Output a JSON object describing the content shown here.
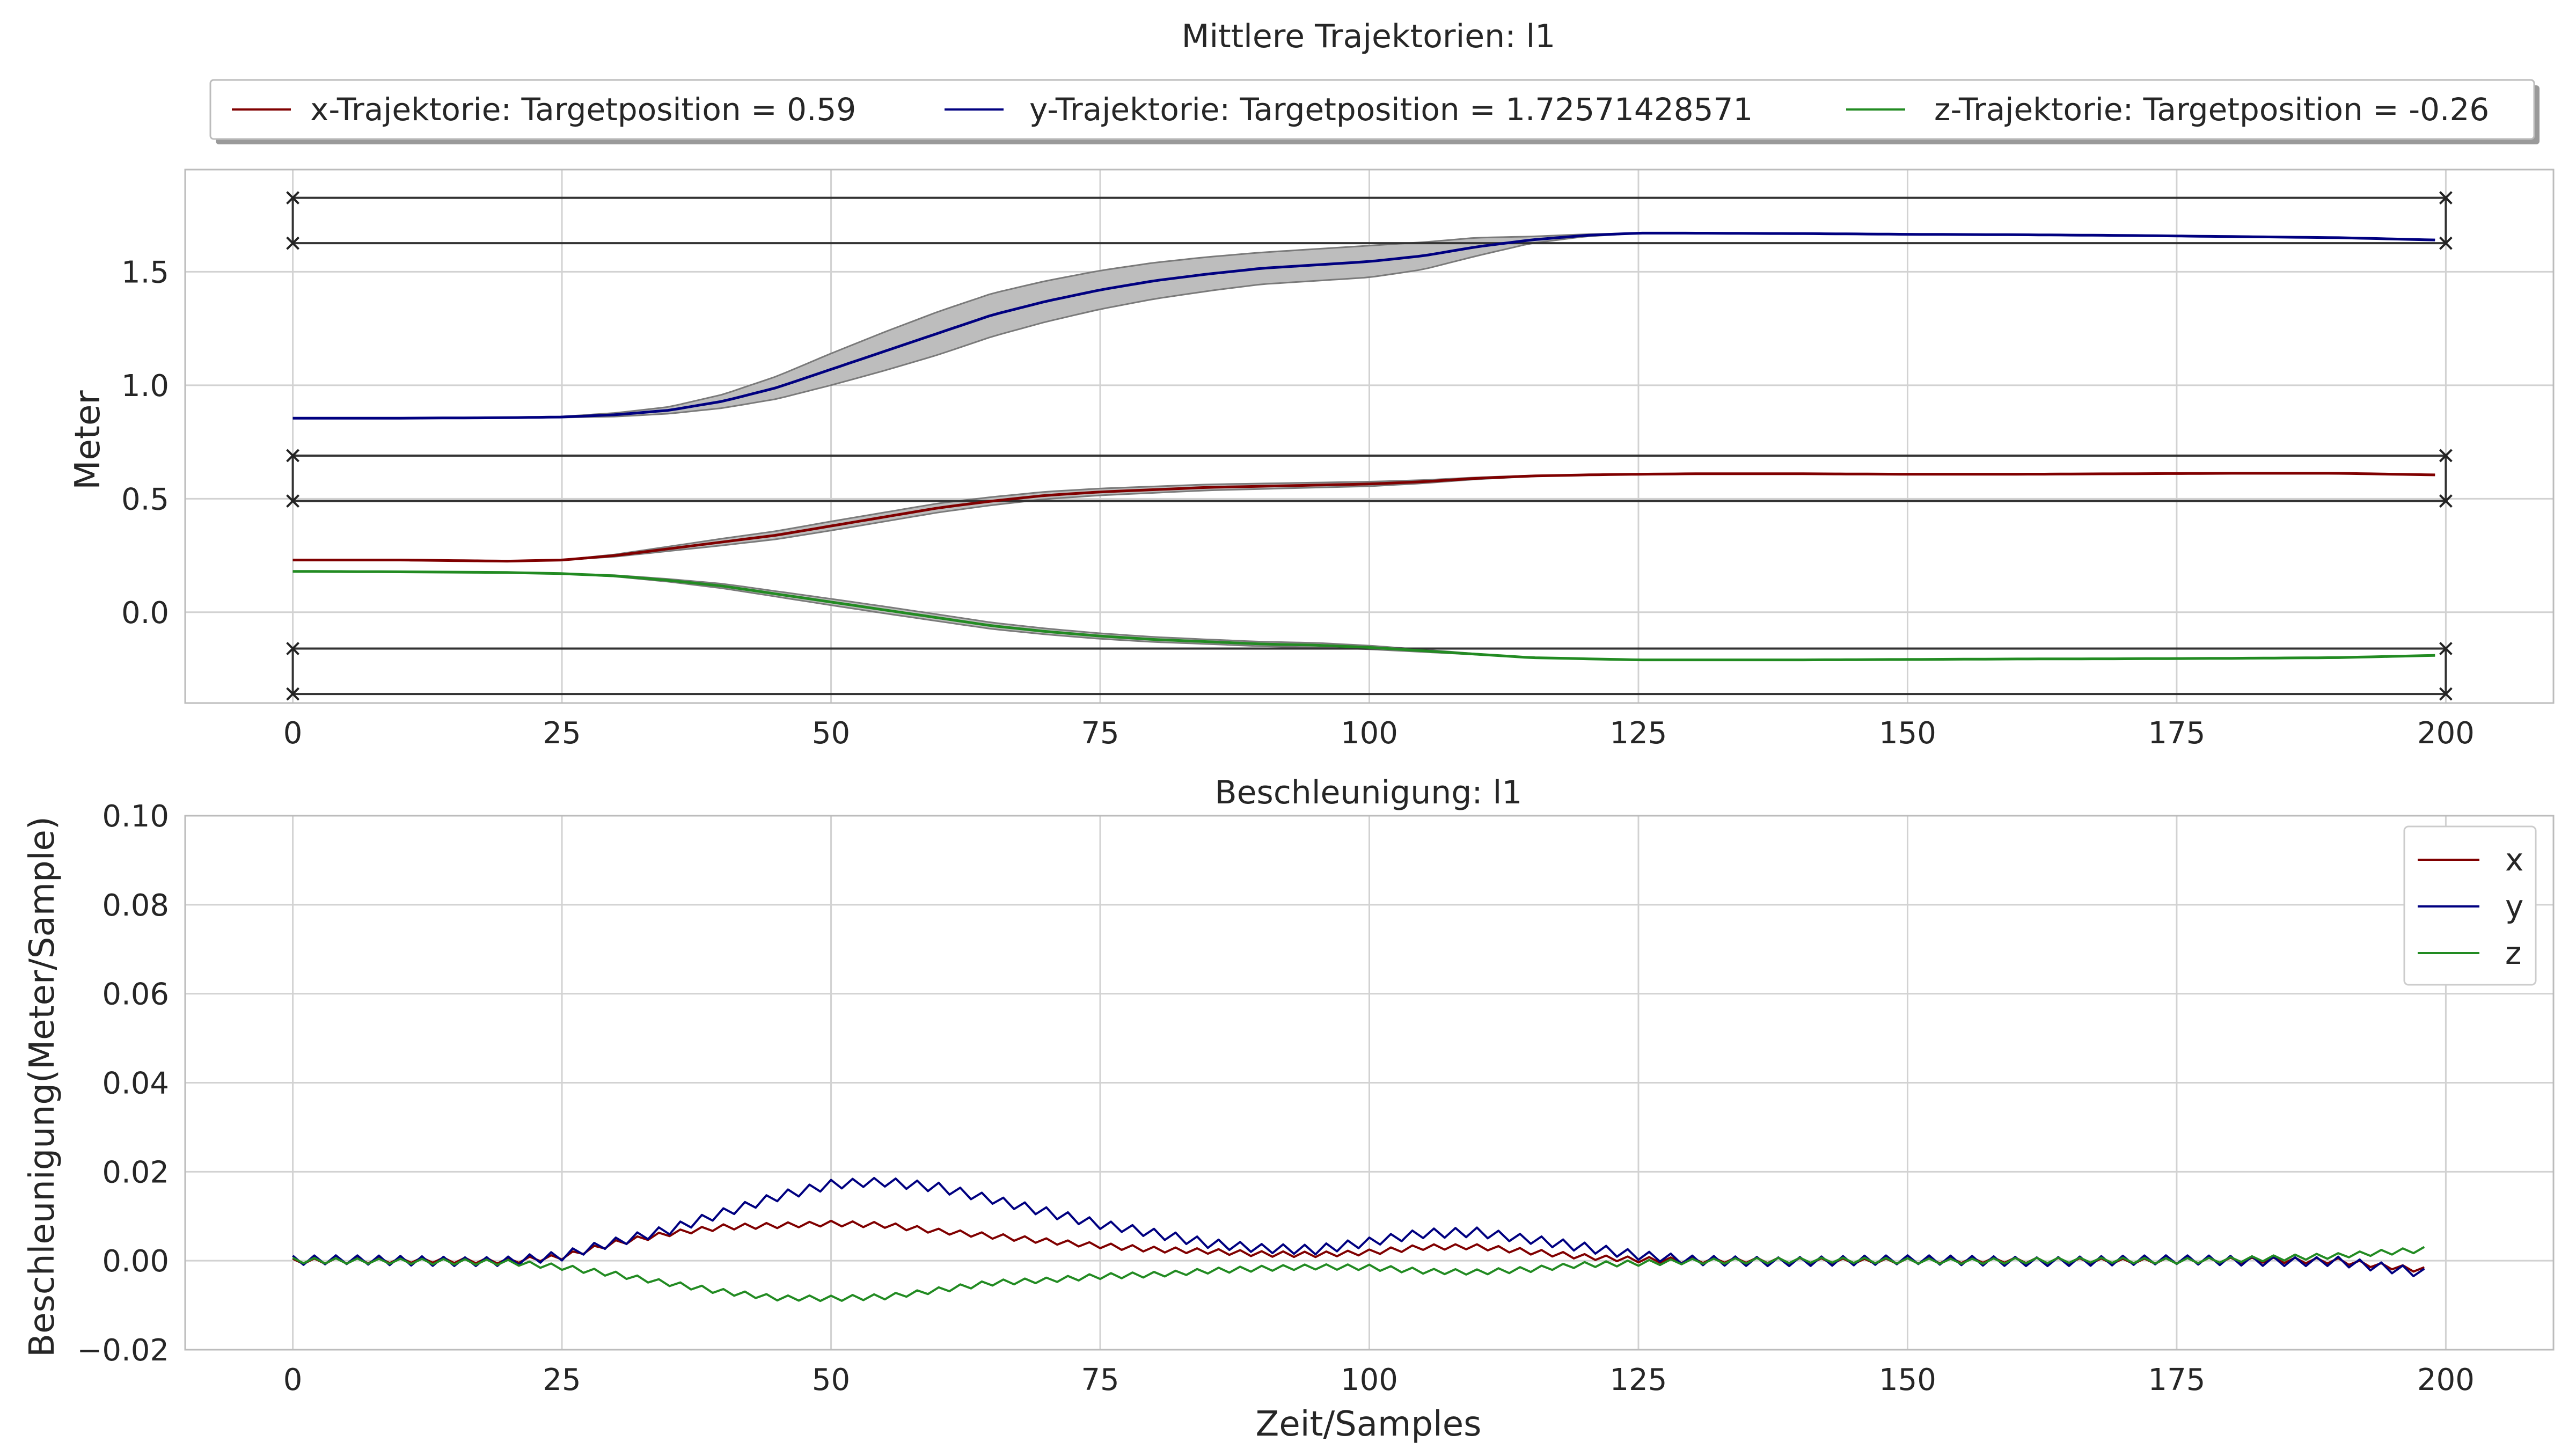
{
  "chart_data": [
    {
      "type": "line",
      "title": "Mittlere Trajektorien: l1",
      "xlabel": "",
      "ylabel": "Meter",
      "xlim": [
        -10,
        210
      ],
      "ylim": [
        -0.4,
        1.95
      ],
      "x_ticks": [
        0,
        25,
        50,
        75,
        100,
        125,
        150,
        175,
        200
      ],
      "y_ticks": [
        0.0,
        0.5,
        1.0,
        1.5
      ],
      "x_tick_labels": [
        "0",
        "25",
        "50",
        "75",
        "100",
        "125",
        "150",
        "175",
        "200"
      ],
      "y_tick_labels": [
        "0.0",
        "0.5",
        "1.0",
        "1.5"
      ],
      "grid": true,
      "legend": "top-outside",
      "legend_entries": [
        "x-Trajektorie: Targetposition = 0.59",
        "y-Trajektorie: Targetposition = 1.72571428571",
        "z-Trajektorie: Targetposition = -0.26"
      ],
      "target_bands": [
        {
          "lower": 0.49,
          "upper": 0.69
        },
        {
          "lower": 1.6257,
          "upper": 1.8257
        },
        {
          "lower": -0.36,
          "upper": -0.16
        }
      ],
      "band_range_x": [
        0,
        200
      ],
      "series": [
        {
          "name": "x-Trajektorie: Targetposition = 0.59",
          "color": "#800000",
          "x": [
            0,
            10,
            20,
            25,
            30,
            35,
            40,
            45,
            50,
            55,
            60,
            65,
            70,
            75,
            80,
            85,
            90,
            95,
            100,
            105,
            110,
            115,
            120,
            125,
            130,
            140,
            150,
            160,
            170,
            180,
            190,
            199
          ],
          "values": [
            0.23,
            0.23,
            0.225,
            0.23,
            0.25,
            0.28,
            0.31,
            0.34,
            0.38,
            0.42,
            0.46,
            0.49,
            0.515,
            0.53,
            0.54,
            0.55,
            0.555,
            0.56,
            0.565,
            0.575,
            0.59,
            0.6,
            0.605,
            0.608,
            0.61,
            0.61,
            0.608,
            0.608,
            0.61,
            0.612,
            0.612,
            0.605
          ],
          "band_halfwidth": [
            0,
            0,
            0,
            0,
            0.005,
            0.01,
            0.015,
            0.018,
            0.02,
            0.02,
            0.02,
            0.018,
            0.016,
            0.015,
            0.014,
            0.013,
            0.012,
            0.011,
            0.01,
            0.007,
            0.004,
            0.002,
            0,
            0,
            0,
            0,
            0,
            0,
            0,
            0,
            0,
            0
          ]
        },
        {
          "name": "y-Trajektorie: Targetposition = 1.72571428571",
          "color": "#000080",
          "x": [
            0,
            10,
            20,
            25,
            30,
            35,
            40,
            45,
            50,
            55,
            60,
            65,
            70,
            75,
            80,
            85,
            90,
            95,
            100,
            105,
            110,
            115,
            120,
            125,
            130,
            140,
            150,
            160,
            170,
            180,
            190,
            199
          ],
          "values": [
            0.855,
            0.855,
            0.857,
            0.86,
            0.87,
            0.89,
            0.93,
            0.99,
            1.07,
            1.15,
            1.23,
            1.31,
            1.37,
            1.42,
            1.46,
            1.49,
            1.515,
            1.53,
            1.545,
            1.57,
            1.61,
            1.64,
            1.66,
            1.67,
            1.67,
            1.668,
            1.665,
            1.663,
            1.66,
            1.655,
            1.65,
            1.64
          ],
          "band_halfwidth": [
            0,
            0,
            0,
            0.002,
            0.008,
            0.015,
            0.03,
            0.05,
            0.07,
            0.085,
            0.095,
            0.095,
            0.09,
            0.085,
            0.08,
            0.075,
            0.07,
            0.07,
            0.07,
            0.06,
            0.04,
            0.015,
            0.005,
            0,
            0,
            0,
            0,
            0,
            0,
            0,
            0,
            0
          ]
        },
        {
          "name": "z-Trajektorie: Targetposition = -0.26",
          "color": "#228B22",
          "x": [
            0,
            10,
            20,
            25,
            30,
            35,
            40,
            45,
            50,
            55,
            60,
            65,
            70,
            75,
            80,
            85,
            90,
            95,
            100,
            105,
            110,
            115,
            120,
            125,
            130,
            140,
            150,
            160,
            170,
            180,
            190,
            199
          ],
          "values": [
            0.18,
            0.178,
            0.175,
            0.17,
            0.16,
            0.14,
            0.115,
            0.08,
            0.045,
            0.01,
            -0.025,
            -0.06,
            -0.085,
            -0.105,
            -0.12,
            -0.13,
            -0.14,
            -0.145,
            -0.155,
            -0.17,
            -0.185,
            -0.2,
            -0.205,
            -0.21,
            -0.21,
            -0.21,
            -0.208,
            -0.206,
            -0.205,
            -0.203,
            -0.2,
            -0.19
          ],
          "band_halfwidth": [
            0,
            0,
            0,
            0,
            0.003,
            0.006,
            0.01,
            0.012,
            0.014,
            0.015,
            0.015,
            0.014,
            0.013,
            0.012,
            0.011,
            0.01,
            0.01,
            0.01,
            0.008,
            0.005,
            0.002,
            0,
            0,
            0,
            0,
            0,
            0,
            0,
            0,
            0,
            0,
            0
          ]
        }
      ]
    },
    {
      "type": "line",
      "title": "Beschleunigung: l1",
      "xlabel": "Zeit/Samples",
      "ylabel": "Beschleunigung(Meter/Sample)",
      "xlim": [
        -10,
        210
      ],
      "ylim": [
        -0.02,
        0.1
      ],
      "x_ticks": [
        0,
        25,
        50,
        75,
        100,
        125,
        150,
        175,
        200
      ],
      "y_ticks": [
        -0.02,
        0.0,
        0.02,
        0.04,
        0.06,
        0.08,
        0.1
      ],
      "x_tick_labels": [
        "0",
        "25",
        "50",
        "75",
        "100",
        "125",
        "150",
        "175",
        "200"
      ],
      "y_tick_labels": [
        "−0.02",
        "0.00",
        "0.02",
        "0.04",
        "0.06",
        "0.08",
        "0.10"
      ],
      "grid": true,
      "legend": "top-right",
      "series": [
        {
          "name": "x",
          "color": "#800000",
          "noise": 0.0007,
          "x": [
            0,
            10,
            20,
            25,
            30,
            35,
            40,
            45,
            50,
            55,
            60,
            65,
            70,
            75,
            80,
            85,
            90,
            95,
            100,
            105,
            110,
            115,
            120,
            125,
            130,
            150,
            175,
            190,
            198
          ],
          "values": [
            0,
            0,
            0,
            0.001,
            0.004,
            0.006,
            0.0075,
            0.008,
            0.0085,
            0.008,
            0.0065,
            0.0055,
            0.0045,
            0.0035,
            0.0025,
            0.002,
            0.0015,
            0.0015,
            0.002,
            0.003,
            0.003,
            0.002,
            0.001,
            0.0003,
            0,
            0,
            0,
            0,
            -0.002
          ]
        },
        {
          "name": "y",
          "color": "#000080",
          "noise": 0.0012,
          "x": [
            0,
            10,
            20,
            25,
            30,
            35,
            40,
            45,
            50,
            55,
            60,
            65,
            70,
            75,
            80,
            85,
            90,
            95,
            100,
            105,
            110,
            115,
            120,
            125,
            130,
            150,
            175,
            190,
            198
          ],
          "values": [
            0,
            0,
            0,
            0.001,
            0.004,
            0.007,
            0.011,
            0.0145,
            0.017,
            0.0175,
            0.0165,
            0.014,
            0.011,
            0.008,
            0.006,
            0.004,
            0.003,
            0.0025,
            0.004,
            0.006,
            0.0065,
            0.005,
            0.003,
            0.001,
            0,
            0,
            0,
            0,
            -0.003
          ]
        },
        {
          "name": "z",
          "color": "#228B22",
          "noise": 0.0007,
          "x": [
            0,
            10,
            20,
            25,
            30,
            35,
            40,
            45,
            50,
            55,
            60,
            65,
            70,
            75,
            80,
            85,
            90,
            95,
            100,
            105,
            110,
            115,
            120,
            125,
            130,
            150,
            175,
            190,
            198
          ],
          "values": [
            0,
            0,
            -0.0005,
            -0.0015,
            -0.003,
            -0.005,
            -0.007,
            -0.0085,
            -0.0085,
            -0.008,
            -0.0065,
            -0.005,
            -0.0045,
            -0.0035,
            -0.003,
            -0.0022,
            -0.0018,
            -0.0015,
            -0.0015,
            -0.0022,
            -0.0025,
            -0.002,
            -0.001,
            -0.0005,
            0,
            0,
            0,
            0.001,
            0.0025
          ]
        }
      ]
    }
  ]
}
